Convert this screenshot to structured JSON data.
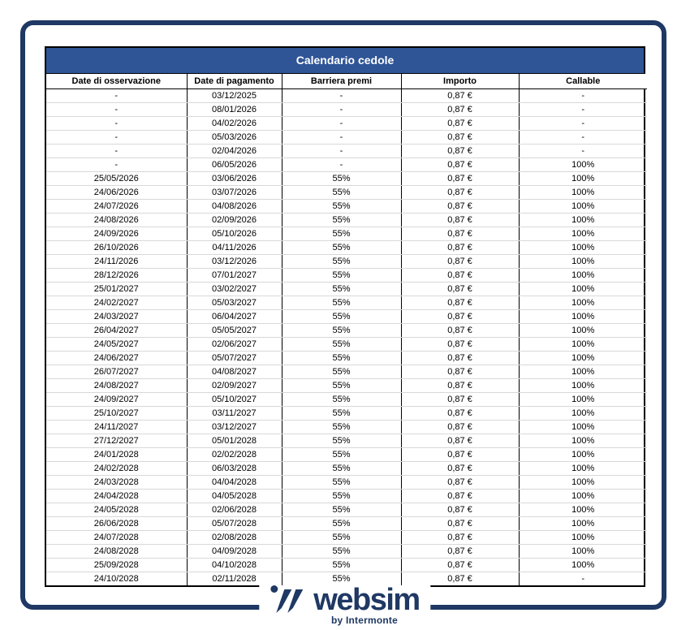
{
  "table": {
    "title": "Calendario cedole",
    "columns": [
      "Date di osservazione",
      "Date di pagamento",
      "Barriera premi",
      "Importo",
      "Callable"
    ],
    "rows": [
      [
        "-",
        "03/12/2025",
        "-",
        "0,87 €",
        "-"
      ],
      [
        "-",
        "08/01/2026",
        "-",
        "0,87 €",
        "-"
      ],
      [
        "-",
        "04/02/2026",
        "-",
        "0,87 €",
        "-"
      ],
      [
        "-",
        "05/03/2026",
        "-",
        "0,87 €",
        "-"
      ],
      [
        "-",
        "02/04/2026",
        "-",
        "0,87 €",
        "-"
      ],
      [
        "-",
        "06/05/2026",
        "-",
        "0,87 €",
        "100%"
      ],
      [
        "25/05/2026",
        "03/06/2026",
        "55%",
        "0,87 €",
        "100%"
      ],
      [
        "24/06/2026",
        "03/07/2026",
        "55%",
        "0,87 €",
        "100%"
      ],
      [
        "24/07/2026",
        "04/08/2026",
        "55%",
        "0,87 €",
        "100%"
      ],
      [
        "24/08/2026",
        "02/09/2026",
        "55%",
        "0,87 €",
        "100%"
      ],
      [
        "24/09/2026",
        "05/10/2026",
        "55%",
        "0,87 €",
        "100%"
      ],
      [
        "26/10/2026",
        "04/11/2026",
        "55%",
        "0,87 €",
        "100%"
      ],
      [
        "24/11/2026",
        "03/12/2026",
        "55%",
        "0,87 €",
        "100%"
      ],
      [
        "28/12/2026",
        "07/01/2027",
        "55%",
        "0,87 €",
        "100%"
      ],
      [
        "25/01/2027",
        "03/02/2027",
        "55%",
        "0,87 €",
        "100%"
      ],
      [
        "24/02/2027",
        "05/03/2027",
        "55%",
        "0,87 €",
        "100%"
      ],
      [
        "24/03/2027",
        "06/04/2027",
        "55%",
        "0,87 €",
        "100%"
      ],
      [
        "26/04/2027",
        "05/05/2027",
        "55%",
        "0,87 €",
        "100%"
      ],
      [
        "24/05/2027",
        "02/06/2027",
        "55%",
        "0,87 €",
        "100%"
      ],
      [
        "24/06/2027",
        "05/07/2027",
        "55%",
        "0,87 €",
        "100%"
      ],
      [
        "26/07/2027",
        "04/08/2027",
        "55%",
        "0,87 €",
        "100%"
      ],
      [
        "24/08/2027",
        "02/09/2027",
        "55%",
        "0,87 €",
        "100%"
      ],
      [
        "24/09/2027",
        "05/10/2027",
        "55%",
        "0,87 €",
        "100%"
      ],
      [
        "25/10/2027",
        "03/11/2027",
        "55%",
        "0,87 €",
        "100%"
      ],
      [
        "24/11/2027",
        "03/12/2027",
        "55%",
        "0,87 €",
        "100%"
      ],
      [
        "27/12/2027",
        "05/01/2028",
        "55%",
        "0,87 €",
        "100%"
      ],
      [
        "24/01/2028",
        "02/02/2028",
        "55%",
        "0,87 €",
        "100%"
      ],
      [
        "24/02/2028",
        "06/03/2028",
        "55%",
        "0,87 €",
        "100%"
      ],
      [
        "24/03/2028",
        "04/04/2028",
        "55%",
        "0,87 €",
        "100%"
      ],
      [
        "24/04/2028",
        "04/05/2028",
        "55%",
        "0,87 €",
        "100%"
      ],
      [
        "24/05/2028",
        "02/06/2028",
        "55%",
        "0,87 €",
        "100%"
      ],
      [
        "26/06/2028",
        "05/07/2028",
        "55%",
        "0,87 €",
        "100%"
      ],
      [
        "24/07/2028",
        "02/08/2028",
        "55%",
        "0,87 €",
        "100%"
      ],
      [
        "24/08/2028",
        "04/09/2028",
        "55%",
        "0,87 €",
        "100%"
      ],
      [
        "25/09/2028",
        "04/10/2028",
        "55%",
        "0,87 €",
        "100%"
      ],
      [
        "24/10/2028",
        "02/11/2028",
        "55%",
        "0,87 €",
        "-"
      ]
    ]
  },
  "logo": {
    "brand": "websim",
    "byline": "by Intermonte"
  },
  "colors": {
    "frame_navy": "#1F3864",
    "title_bar_blue": "#2F5597",
    "title_text": "#FFFFFF",
    "grid_black": "#000000",
    "row_separator_gray": "#D8D8D8"
  }
}
